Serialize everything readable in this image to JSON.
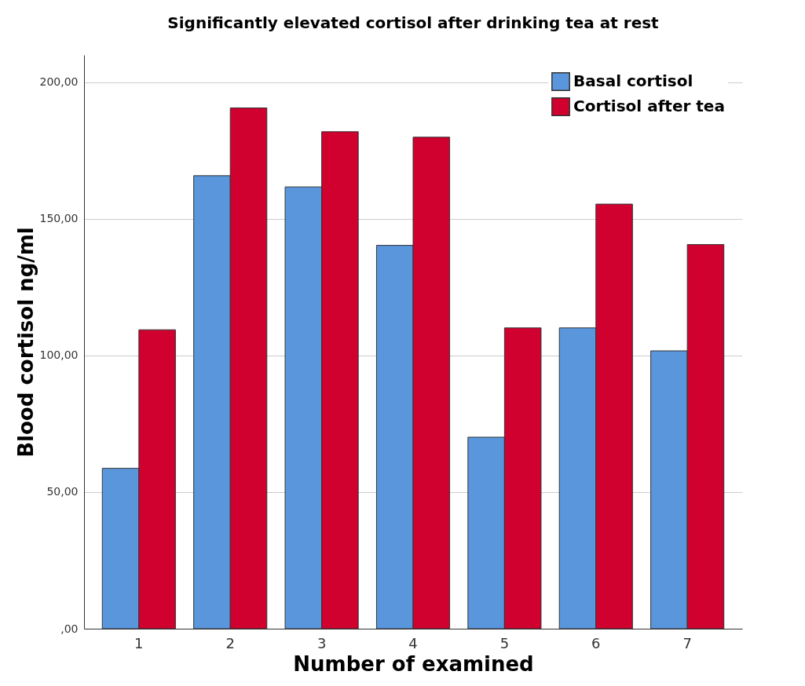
{
  "chart_data": {
    "type": "bar",
    "title": "Significantly elevated cortisol after drinking tea at rest",
    "xlabel": "Number of examined",
    "ylabel": "Blood cortisol ng/ml",
    "categories": [
      "1",
      "2",
      "3",
      "4",
      "5",
      "6",
      "7"
    ],
    "series": [
      {
        "name": "Basal cortisol",
        "color": "#5a96dc",
        "values": [
          58.7,
          165.8,
          161.7,
          140.3,
          70.1,
          110.1,
          101.7
        ]
      },
      {
        "name": "Cortisol after tea",
        "color": "#d0002f",
        "values": [
          109.4,
          190.6,
          181.9,
          179.9,
          110.1,
          155.4,
          140.6
        ]
      }
    ],
    "ylim": [
      0,
      210
    ],
    "yticks": [
      {
        "value": 0,
        "label": ",00"
      },
      {
        "value": 50,
        "label": "50,00"
      },
      {
        "value": 100,
        "label": "100,00"
      },
      {
        "value": 150,
        "label": "150,00"
      },
      {
        "value": 200,
        "label": "200,00"
      }
    ],
    "grid": "y",
    "legend": "top right"
  }
}
